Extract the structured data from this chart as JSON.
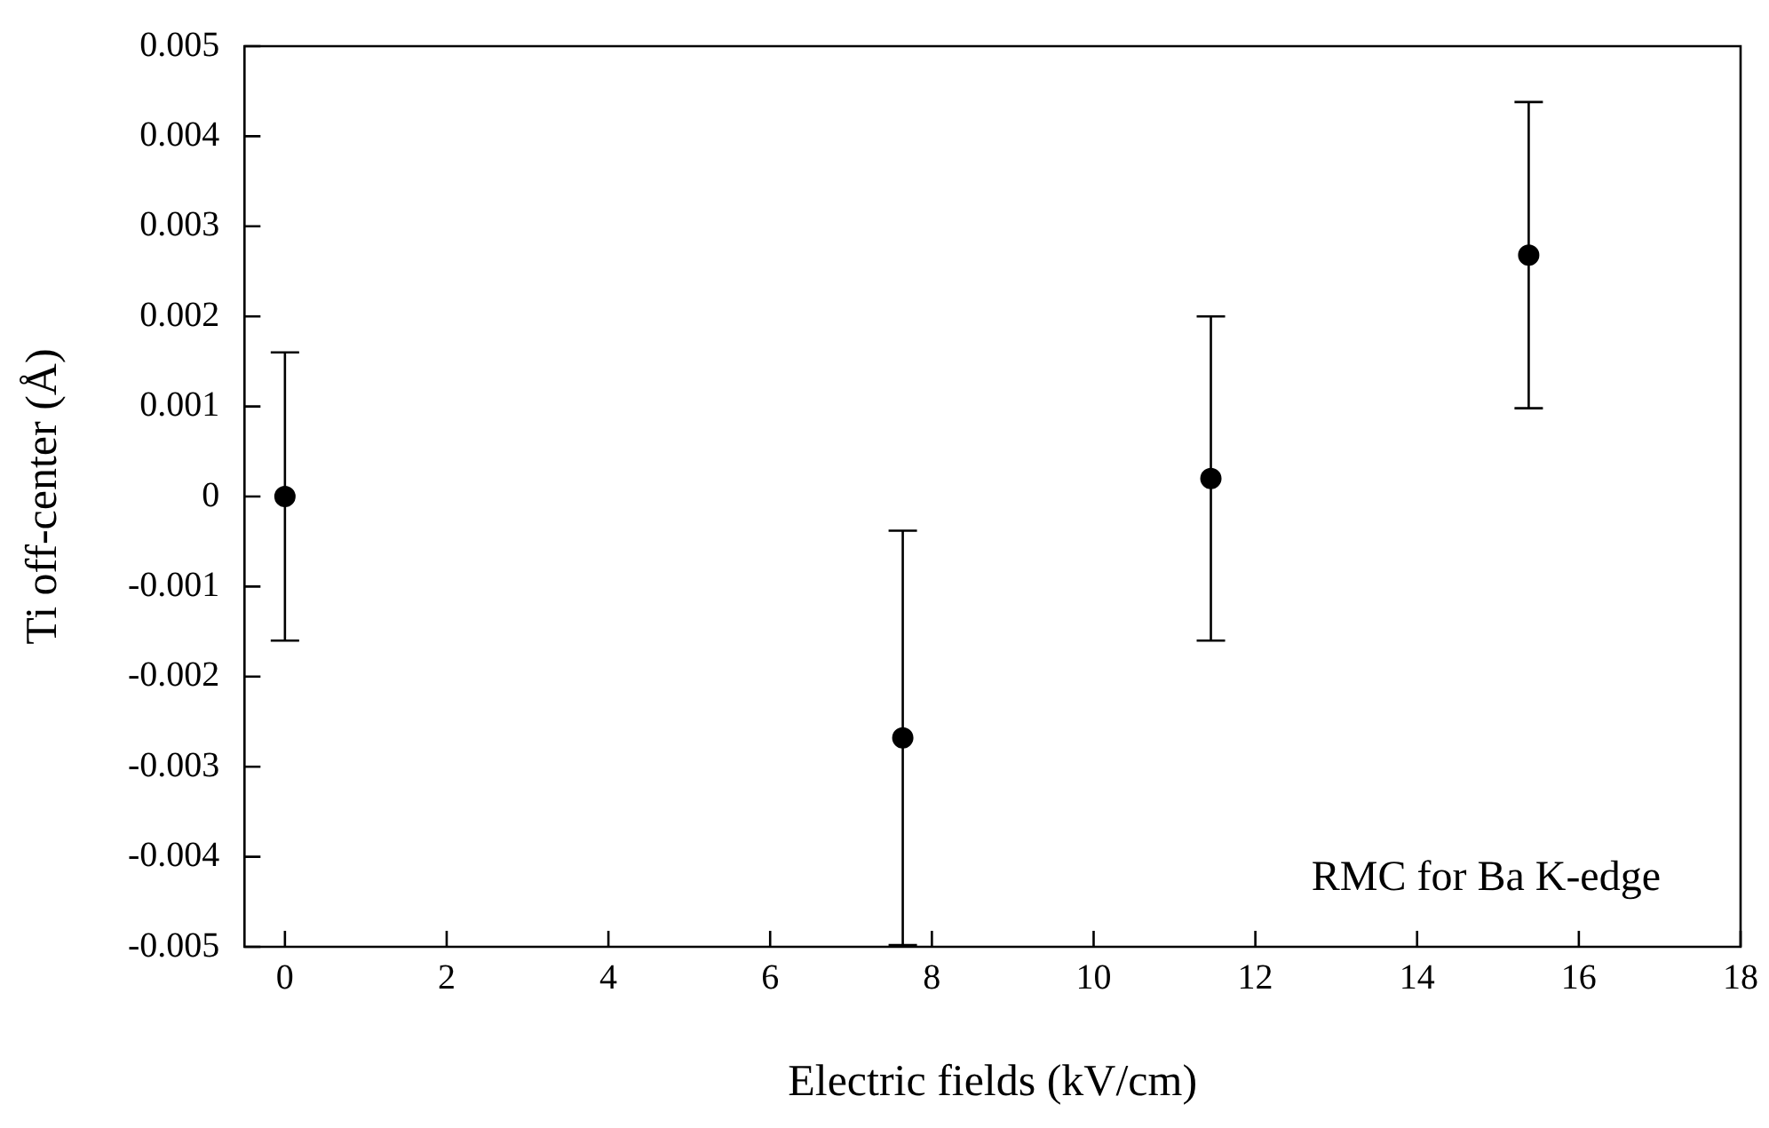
{
  "chart_data": {
    "type": "scatter",
    "xlabel": "Electric fields (kV/cm)",
    "ylabel": "Ti off-center (Å)",
    "x": [
      0,
      7.64,
      11.45,
      15.38
    ],
    "values": [
      0,
      -0.00268,
      0.0002,
      0.00268
    ],
    "errors": [
      0.0016,
      0.0023,
      0.0018,
      0.0017
    ],
    "color": "#000000",
    "marker": "circle",
    "xlim": [
      -0.5,
      18
    ],
    "xticks": [
      0,
      2,
      4,
      6,
      8,
      10,
      12,
      14,
      16,
      18
    ],
    "ylim": [
      -0.005,
      0.005
    ],
    "yticks": [
      {
        "value": -0.005,
        "label": "-0.005"
      },
      {
        "value": -0.004,
        "label": "-0.004"
      },
      {
        "value": -0.003,
        "label": "-0.003"
      },
      {
        "value": -0.002,
        "label": "-0.002"
      },
      {
        "value": -0.001,
        "label": "-0.001"
      },
      0,
      {
        "value": 0.001,
        "label": "0.001"
      },
      {
        "value": 0.002,
        "label": "0.002"
      },
      {
        "value": 0.003,
        "label": "0.003"
      },
      {
        "value": 0.004,
        "label": "0.004"
      },
      {
        "value": 0.005,
        "label": "0.005"
      }
    ],
    "annotations": [
      "RMC for Ba K-edge"
    ],
    "grid": false,
    "legend": false
  }
}
